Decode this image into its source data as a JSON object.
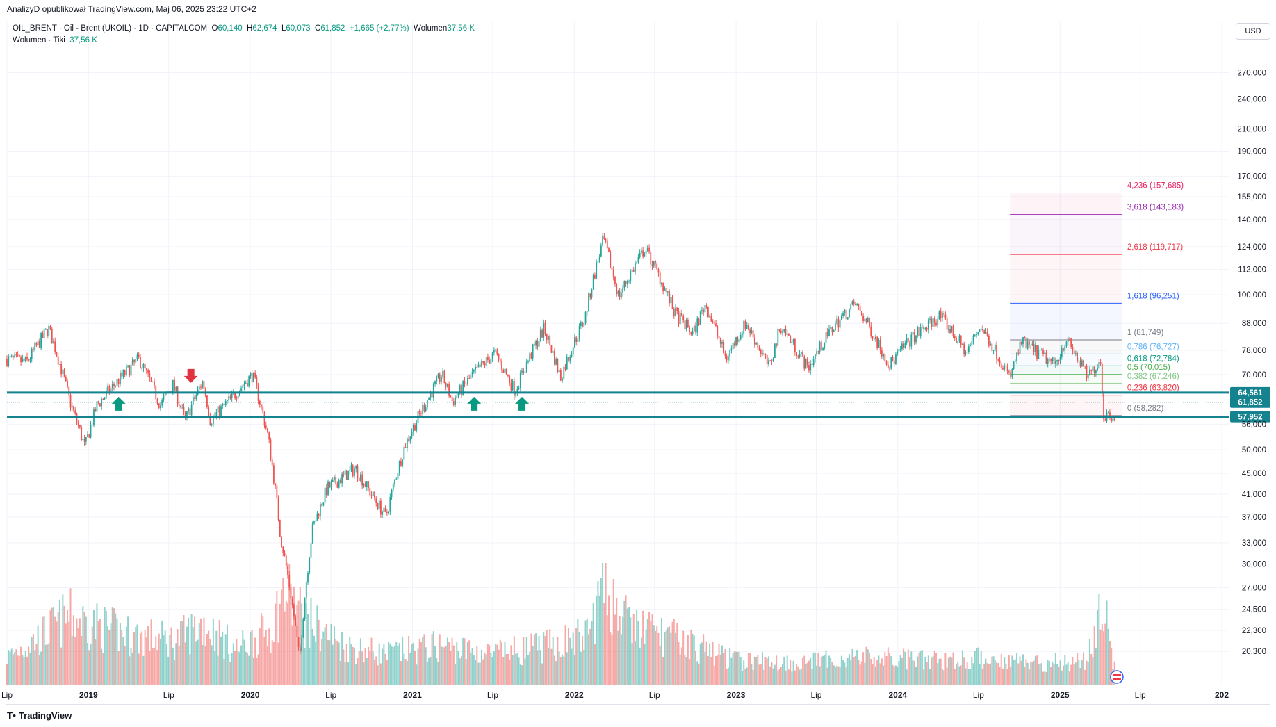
{
  "header": {
    "publisher": "AnalizyD opublikował TradingView.com, Maj 06, 2025 23:22 UTC+2"
  },
  "legend": {
    "symbol": "OIL_BRENT · Oil - Brent (UKOIL) · 1D · CAPITALCOM",
    "o_label": "O",
    "o_value": "60,140",
    "h_label": "H",
    "h_value": "62,674",
    "l_label": "L",
    "l_value": "60,073",
    "c_label": "C",
    "c_value": "61,852",
    "change": "+1,665 (+2,77%)",
    "vol_label": "Wolumen",
    "vol_value": "37,56 K",
    "vol2_label": "Wolumen · Tiki",
    "vol2_value": "37,56 K"
  },
  "currency_button": "USD",
  "footer": {
    "brand": "TradingView",
    "logo": "tradingview-logo-icon"
  },
  "colors": {
    "up": "#26a69a",
    "down": "#ef5350",
    "level_line": "#14838f",
    "arrow_up": "#089981",
    "arrow_down": "#e0323f",
    "grid": "#f0f3fa"
  },
  "chart_data": {
    "type": "candlestick",
    "scale": "log",
    "ylim": [
      17.5,
      310
    ],
    "price_ticks": [
      "270,000",
      "240,000",
      "210,000",
      "190,000",
      "170,000",
      "155,000",
      "140,000",
      "124,000",
      "112,000",
      "100,000",
      "88,000",
      "78,000",
      "70,000",
      "56,000",
      "50,000",
      "45,000",
      "41,000",
      "37,000",
      "33,000",
      "30,000",
      "27,000",
      "24,500",
      "22,300",
      "20,300"
    ],
    "x_ticks": [
      "Lip",
      "2019",
      "Lip",
      "2020",
      "Lip",
      "2021",
      "Lip",
      "2022",
      "Lip",
      "2023",
      "Lip",
      "2024",
      "Lip",
      "2025",
      "Lip",
      "202"
    ],
    "x_tick_dates": [
      "2018-07-01",
      "2019-01-01",
      "2019-07-01",
      "2020-01-01",
      "2020-07-01",
      "2021-01-01",
      "2021-07-01",
      "2022-01-01",
      "2022-07-01",
      "2023-01-01",
      "2023-07-01",
      "2024-01-01",
      "2024-07-01",
      "2025-01-01",
      "2025-07-01",
      "2026-01-01"
    ],
    "price_path": [
      [
        "2018-07-01",
        75
      ],
      [
        "2018-08-15",
        74
      ],
      [
        "2018-10-03",
        86
      ],
      [
        "2018-11-20",
        62
      ],
      [
        "2018-12-24",
        50.5
      ],
      [
        "2019-01-20",
        61
      ],
      [
        "2019-04-25",
        75
      ],
      [
        "2019-06-12",
        61
      ],
      [
        "2019-07-10",
        67
      ],
      [
        "2019-08-07",
        57
      ],
      [
        "2019-09-16",
        68
      ],
      [
        "2019-10-03",
        57
      ],
      [
        "2019-11-20",
        63
      ],
      [
        "2020-01-06",
        70
      ],
      [
        "2020-02-10",
        53
      ],
      [
        "2020-03-09",
        34
      ],
      [
        "2020-04-21",
        19.5
      ],
      [
        "2020-05-20",
        35
      ],
      [
        "2020-06-22",
        42
      ],
      [
        "2020-08-25",
        46
      ],
      [
        "2020-09-30",
        41
      ],
      [
        "2020-11-02",
        37
      ],
      [
        "2020-12-15",
        51
      ],
      [
        "2021-03-08",
        70
      ],
      [
        "2021-04-01",
        62
      ],
      [
        "2021-05-18",
        70
      ],
      [
        "2021-07-06",
        77
      ],
      [
        "2021-08-20",
        65
      ],
      [
        "2021-10-25",
        86
      ],
      [
        "2021-12-01",
        69
      ],
      [
        "2022-01-25",
        90
      ],
      [
        "2022-03-08",
        128
      ],
      [
        "2022-04-11",
        99
      ],
      [
        "2022-06-10",
        123
      ],
      [
        "2022-08-16",
        92
      ],
      [
        "2022-09-26",
        84
      ],
      [
        "2022-10-24",
        96
      ],
      [
        "2022-12-09",
        75
      ],
      [
        "2023-01-23",
        88
      ],
      [
        "2023-03-17",
        72
      ],
      [
        "2023-04-12",
        87
      ],
      [
        "2023-06-12",
        72
      ],
      [
        "2023-08-10",
        87
      ],
      [
        "2023-09-27",
        96
      ],
      [
        "2023-12-13",
        73
      ],
      [
        "2024-01-30",
        82
      ],
      [
        "2024-04-05",
        91
      ],
      [
        "2024-06-04",
        77
      ],
      [
        "2024-07-05",
        87
      ],
      [
        "2024-09-10",
        69
      ],
      [
        "2024-10-07",
        81
      ],
      [
        "2024-12-20",
        73
      ],
      [
        "2025-01-15",
        82
      ],
      [
        "2025-03-05",
        69
      ],
      [
        "2025-04-02",
        75
      ],
      [
        "2025-04-09",
        58.3
      ],
      [
        "2025-05-05",
        58.5
      ],
      [
        "2025-05-06",
        61.852
      ]
    ],
    "horizontal_levels": [
      {
        "price": 64.561,
        "label": "64,561"
      },
      {
        "price": 57.952,
        "label": "57,952"
      }
    ],
    "last_price": {
      "price": 61.852,
      "label": "61,852"
    },
    "signals": [
      {
        "date": "2019-03-10",
        "direction": "up"
      },
      {
        "date": "2019-08-20",
        "direction": "down"
      },
      {
        "date": "2021-05-20",
        "direction": "up"
      },
      {
        "date": "2021-09-05",
        "direction": "up"
      }
    ],
    "fibonacci": {
      "start_date": "2024-09-10",
      "end_date": "2025-05-20",
      "levels": [
        {
          "ratio": "4,236",
          "price": 157.685,
          "label": "4,236 (157,685)",
          "color": "#e91e63"
        },
        {
          "ratio": "3,618",
          "price": 143.183,
          "label": "3,618 (143,183)",
          "color": "#9c27b0"
        },
        {
          "ratio": "2,618",
          "price": 119.717,
          "label": "2,618 (119,717)",
          "color": "#f23645"
        },
        {
          "ratio": "1,618",
          "price": 96.251,
          "label": "1,618 (96,251)",
          "color": "#2962ff"
        },
        {
          "ratio": "1",
          "price": 81.749,
          "label": "1 (81,749)",
          "color": "#787b86"
        },
        {
          "ratio": "0,786",
          "price": 76.727,
          "label": "0,786 (76,727)",
          "color": "#64b5f6"
        },
        {
          "ratio": "0,618",
          "price": 72.784,
          "label": "0,618 (72,784)",
          "color": "#089981"
        },
        {
          "ratio": "0,5",
          "price": 70.015,
          "label": "0,5 (70,015)",
          "color": "#4caf50"
        },
        {
          "ratio": "0,382",
          "price": 67.246,
          "label": "0,382 (67,246)",
          "color": "#81c784"
        },
        {
          "ratio": "0,236",
          "price": 63.82,
          "label": "0,236 (63,820)",
          "color": "#f23645"
        },
        {
          "ratio": "0",
          "price": 58.282,
          "label": "0 (58,282)",
          "color": "#787b86"
        }
      ]
    },
    "volume_profile": [
      [
        "2018-07-01",
        0.25
      ],
      [
        "2018-09-20",
        0.45
      ],
      [
        "2018-11-15",
        0.62
      ],
      [
        "2019-01-10",
        0.55
      ],
      [
        "2019-04-01",
        0.45
      ],
      [
        "2019-07-15",
        0.4
      ],
      [
        "2019-09-16",
        0.55
      ],
      [
        "2019-12-01",
        0.32
      ],
      [
        "2020-02-15",
        0.5
      ],
      [
        "2020-03-20",
        0.85
      ],
      [
        "2020-05-01",
        0.6
      ],
      [
        "2020-08-01",
        0.35
      ],
      [
        "2020-11-01",
        0.28
      ],
      [
        "2021-03-01",
        0.35
      ],
      [
        "2021-07-01",
        0.28
      ],
      [
        "2021-11-01",
        0.35
      ],
      [
        "2022-02-01",
        0.45
      ],
      [
        "2022-03-08",
        0.9
      ],
      [
        "2022-05-01",
        0.55
      ],
      [
        "2022-09-01",
        0.4
      ],
      [
        "2023-01-01",
        0.22
      ],
      [
        "2023-06-01",
        0.2
      ],
      [
        "2023-10-01",
        0.25
      ],
      [
        "2024-03-01",
        0.22
      ],
      [
        "2024-08-01",
        0.24
      ],
      [
        "2024-12-01",
        0.2
      ],
      [
        "2025-03-01",
        0.22
      ],
      [
        "2025-04-08",
        0.72
      ],
      [
        "2025-05-06",
        0.12
      ]
    ]
  }
}
